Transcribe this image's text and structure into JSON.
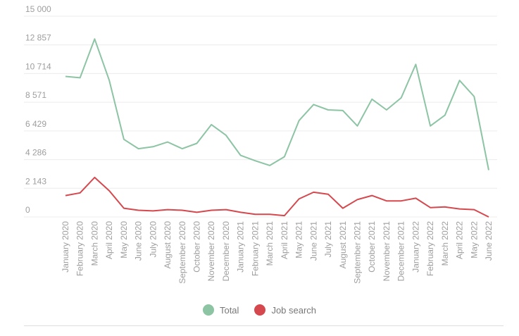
{
  "chart_data": {
    "type": "line",
    "categories": [
      "January 2020",
      "February 2020",
      "March 2020",
      "April 2020",
      "May 2020",
      "June 2020",
      "July 2020",
      "August 2020",
      "September 2020",
      "October 2020",
      "November 2020",
      "December 2020",
      "January 2021",
      "February 2021",
      "March 2021",
      "April 2021",
      "May 2021",
      "June 2021",
      "July 2021",
      "August 2021",
      "September 2021",
      "October 2021",
      "November 2021",
      "December 2021",
      "January 2022",
      "February 2022",
      "March 2022",
      "April 2022",
      "May 2022",
      "June 2022"
    ],
    "yticks": [
      "15 000",
      "12 857",
      "10 714",
      "8 571",
      "6 429",
      "4 286",
      "2 143",
      "0"
    ],
    "ylim": [
      0,
      15000
    ],
    "grid": true,
    "legend_position": "bottom-center",
    "series": [
      {
        "name": "Total",
        "color": "#8cc4a4",
        "values": [
          10500,
          10400,
          13300,
          10200,
          5800,
          5100,
          5250,
          5600,
          5100,
          5500,
          6900,
          6100,
          4600,
          4200,
          3850,
          4500,
          7200,
          8400,
          8000,
          7950,
          6800,
          8800,
          8000,
          8900,
          11400,
          6800,
          7600,
          10200,
          9000,
          3500
        ]
      },
      {
        "name": "Job search",
        "color": "#d5484d",
        "values": [
          1600,
          1800,
          2950,
          1950,
          650,
          500,
          450,
          550,
          500,
          350,
          500,
          550,
          350,
          200,
          200,
          100,
          1350,
          1850,
          1700,
          650,
          1300,
          1600,
          1200,
          1200,
          1400,
          700,
          750,
          600,
          550,
          0
        ]
      }
    ]
  }
}
